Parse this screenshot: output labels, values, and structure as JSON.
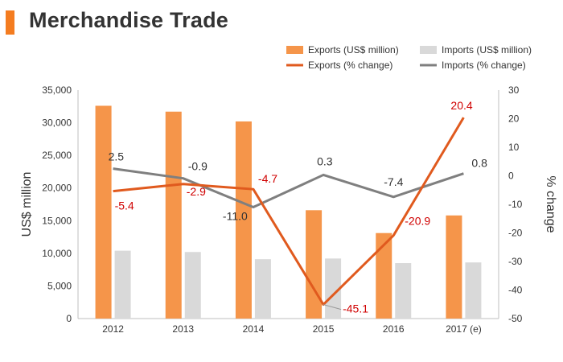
{
  "header": {
    "title": "Merchandise Trade"
  },
  "colors": {
    "accent": "#f47c20",
    "exports_bar": "#f5954a",
    "imports_bar": "#d9d9d9",
    "exports_line": "#e05a1e",
    "imports_line": "#7f7f7f",
    "exports_label": "#d00000",
    "imports_label": "#333333"
  },
  "chart_data": {
    "type": "bar",
    "categories": [
      "2012",
      "2013",
      "2014",
      "2015",
      "2016",
      "2017 (e)"
    ],
    "series": [
      {
        "name": "Exports (US$ million)",
        "type": "bar",
        "axis": "left",
        "values": [
          32600,
          31700,
          30200,
          16600,
          13100,
          15800
        ]
      },
      {
        "name": "Imports (US$ million)",
        "type": "bar",
        "axis": "left",
        "values": [
          10400,
          10200,
          9100,
          9200,
          8500,
          8600
        ]
      },
      {
        "name": "Exports (% change)",
        "type": "line",
        "axis": "right",
        "values": [
          -5.4,
          -2.9,
          -4.7,
          -45.1,
          -20.9,
          20.4
        ],
        "labels": [
          "-5.4",
          "-2.9",
          "-4.7",
          "-45.1",
          "-20.9",
          "20.4"
        ]
      },
      {
        "name": "Imports (% change)",
        "type": "line",
        "axis": "right",
        "values": [
          2.5,
          -0.9,
          -11.0,
          0.3,
          -7.4,
          0.8
        ],
        "labels": [
          "2.5",
          "-0.9",
          "-11.0",
          "0.3",
          "-7.4",
          "0.8"
        ]
      }
    ],
    "ylabel": "US$ million",
    "ylabel_right": "% change",
    "ylim": [
      0,
      35000
    ],
    "ylim_right": [
      -50,
      30
    ],
    "yticks": [
      "0",
      "5,000",
      "10,000",
      "15,000",
      "20,000",
      "25,000",
      "30,000",
      "35,000"
    ],
    "yticks_right": [
      "-50",
      "-40",
      "-30",
      "-20",
      "-10",
      "0",
      "10",
      "20",
      "30"
    ],
    "grid": false,
    "legend_position": "top-right"
  }
}
